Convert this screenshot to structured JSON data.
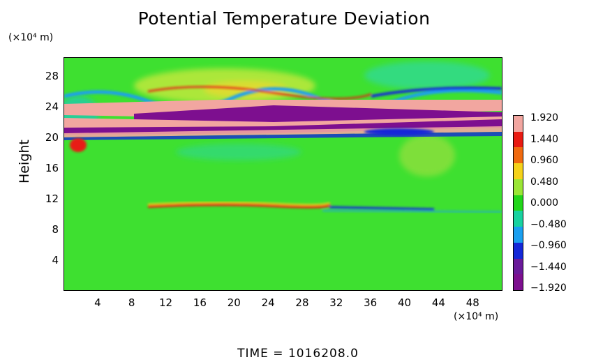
{
  "chart_data": {
    "type": "heatmap",
    "title": "Potential Temperature Deviation",
    "ylabel": "Height",
    "y_unit": "(×10⁴ m)",
    "x_unit": "(×10⁴ m)",
    "time_label": "TIME  =  1016208.0",
    "xlim": [
      0,
      51.5
    ],
    "ylim": [
      0,
      30.5
    ],
    "x_ticks": [
      "4",
      "8",
      "12",
      "16",
      "20",
      "24",
      "28",
      "32",
      "36",
      "40",
      "44",
      "48"
    ],
    "y_ticks": [
      "4",
      "8",
      "12",
      "16",
      "20",
      "24",
      "28"
    ],
    "x_tick_values": [
      4,
      8,
      12,
      16,
      20,
      24,
      28,
      32,
      36,
      40,
      44,
      48
    ],
    "y_tick_values": [
      4,
      8,
      12,
      16,
      20,
      24,
      28
    ],
    "colorbar": {
      "labels": [
        "1.920",
        "1.440",
        "0.960",
        "0.480",
        "0.000",
        "−0.480",
        "−0.960",
        "−1.440",
        "−1.920"
      ],
      "range": [
        -1.92,
        1.92
      ],
      "colors": [
        "#f2a6a0",
        "#e81a12",
        "#f06a10",
        "#f5d21a",
        "#9be635",
        "#22d61a",
        "#18d2a0",
        "#1a9ff0",
        "#1428d8",
        "#6a1a9a",
        "#7d0f8f"
      ]
    },
    "background_color": "#3ee030"
  }
}
